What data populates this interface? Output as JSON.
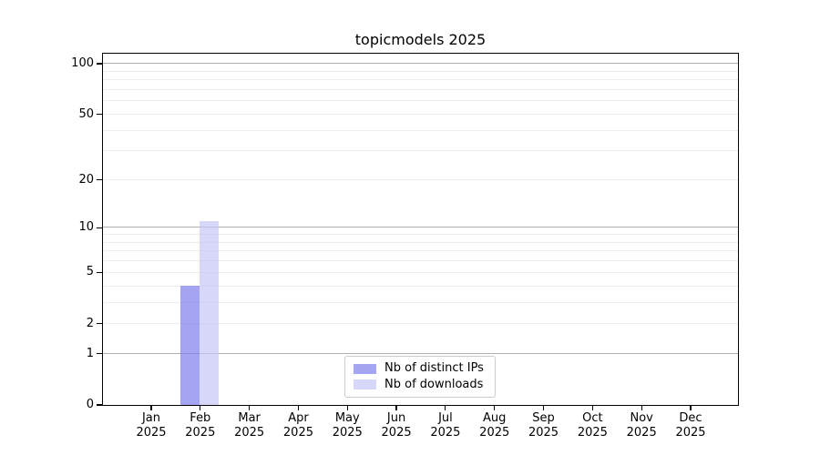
{
  "chart_data": {
    "type": "bar",
    "title": "topicmodels 2025",
    "categories": [
      "Jan 2025",
      "Feb 2025",
      "Mar 2025",
      "Apr 2025",
      "May 2025",
      "Jun 2025",
      "Jul 2025",
      "Aug 2025",
      "Sep 2025",
      "Oct 2025",
      "Nov 2025",
      "Dec 2025"
    ],
    "series": [
      {
        "name": "Nb of distinct IPs",
        "color": "#a5a5f2",
        "values": [
          0,
          4,
          0,
          0,
          0,
          0,
          0,
          0,
          0,
          0,
          0,
          0
        ]
      },
      {
        "name": "Nb of downloads",
        "color": "#d7d7fa",
        "values": [
          0,
          11,
          0,
          0,
          0,
          0,
          0,
          0,
          0,
          0,
          0,
          0
        ]
      }
    ],
    "xlabel": "",
    "ylabel": "",
    "yscale": "log10(1+x)",
    "ylim": [
      0,
      115
    ],
    "ytick_values": [
      0,
      1,
      2,
      5,
      10,
      20,
      50,
      100
    ],
    "ytick_labels": [
      "0",
      "1",
      "2",
      "5",
      "10",
      "20",
      "50",
      "100"
    ],
    "grid": {
      "on": true,
      "major_values": [
        1,
        10,
        100
      ],
      "minor_values": [
        2,
        3,
        4,
        5,
        6,
        7,
        8,
        9,
        20,
        30,
        40,
        50,
        60,
        70,
        80,
        90
      ],
      "major_color": "#b0b0b0",
      "minor_color": "#ececec"
    },
    "legend": {
      "position": "lower-center-inside",
      "items": [
        "Nb of distinct IPs",
        "Nb of downloads"
      ]
    },
    "axis_color": "#000000",
    "text_color": "#000000"
  }
}
